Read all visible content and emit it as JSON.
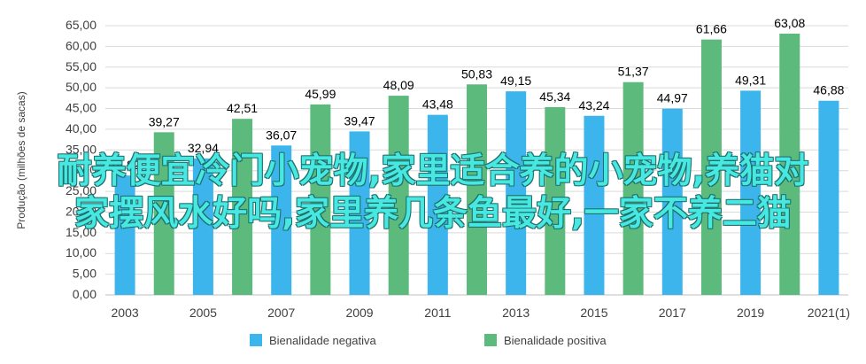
{
  "overlay_text": [
    "耐养便宜冷门小宠物,家里适合养的小宠物,养猫对",
    "家摆风水好吗,家里养几条鱼最好,一家不养二猫"
  ],
  "chart_data": {
    "type": "bar",
    "ylabel": "Produção (milhões de sacas)",
    "ylim": [
      0,
      65
    ],
    "y_ticks": [
      "0,00",
      "5,00",
      "10,00",
      "15,00",
      "20,00",
      "25,00",
      "30,00",
      "35,00",
      "40,00",
      "45,00",
      "50,00",
      "55,00",
      "60,00",
      "65,00"
    ],
    "x_tick_labels": [
      "2003",
      "2005",
      "2007",
      "2009",
      "2011",
      "2013",
      "2015",
      "2017",
      "2019",
      "2021(1)"
    ],
    "categories": [
      "2003",
      "2004",
      "2005",
      "2006",
      "2007",
      "2008",
      "2009",
      "2010",
      "2011",
      "2012",
      "2013",
      "2014",
      "2015",
      "2016",
      "2017",
      "2018",
      "2019",
      "2020",
      "2021(1)"
    ],
    "series": [
      {
        "name": "Bienalidade negativa",
        "color": "#3cb4ec",
        "values": [
          28.82,
          null,
          32.94,
          null,
          36.07,
          null,
          39.47,
          null,
          43.48,
          null,
          49.15,
          null,
          43.24,
          null,
          44.97,
          null,
          49.31,
          null,
          46.88
        ],
        "labels": [
          "28,82",
          null,
          "32,94",
          null,
          "36,07",
          null,
          "39,47",
          null,
          "43,48",
          null,
          "49,15",
          null,
          "43,24",
          null,
          "44,97",
          null,
          "49,31",
          null,
          "46,88"
        ]
      },
      {
        "name": "Bienalidade positiva",
        "color": "#5dba7d",
        "values": [
          null,
          39.27,
          null,
          42.51,
          null,
          45.99,
          null,
          48.09,
          null,
          50.83,
          null,
          45.34,
          null,
          51.37,
          null,
          61.66,
          null,
          63.08,
          null
        ],
        "labels": [
          null,
          "39,27",
          null,
          "42,51",
          null,
          "45,99",
          null,
          "48,09",
          null,
          "50,83",
          null,
          "45,34",
          null,
          "51,37",
          null,
          "61,66",
          null,
          "63,08",
          null
        ]
      }
    ],
    "grid": true,
    "legend_position": "bottom"
  }
}
